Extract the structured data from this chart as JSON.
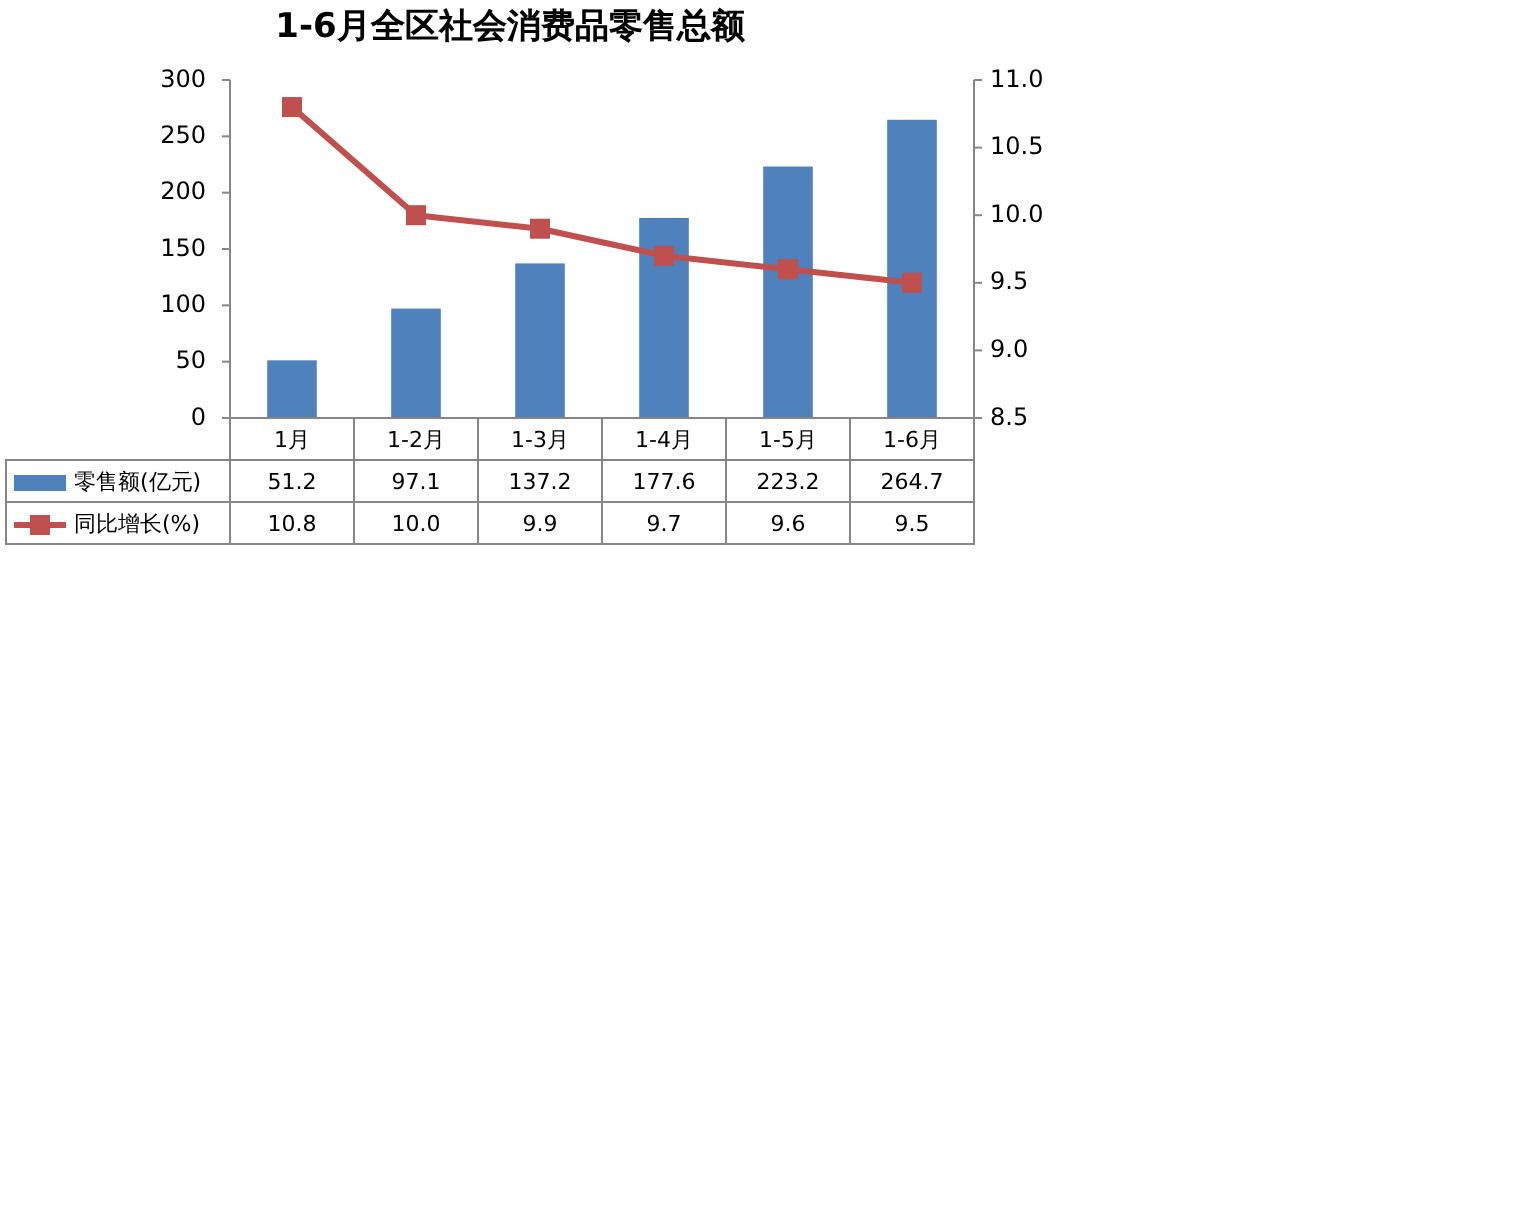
{
  "chart_data": {
    "type": "bar",
    "title": "1-6月全区社会消费品零售总额",
    "categories": [
      "1月",
      "1-2月",
      "1-3月",
      "1-4月",
      "1-5月",
      "1-6月"
    ],
    "series": [
      {
        "name": "零售额(亿元)",
        "color": "#4f81bd",
        "values": [
          51.2,
          97.1,
          137.2,
          177.6,
          223.2,
          264.7
        ],
        "value_labels": [
          "51.2",
          "97.1",
          "137.2",
          "177.6",
          "223.2",
          "264.7"
        ]
      },
      {
        "name": "同比增长(%)",
        "type": "line",
        "axis": "y2",
        "color": "#c0504d",
        "values": [
          10.8,
          10.0,
          9.9,
          9.7,
          9.6,
          9.5
        ],
        "value_labels": [
          "10.8",
          "10.0",
          "9.9",
          "9.7",
          "9.6",
          "9.5"
        ]
      }
    ],
    "ylim": [
      0,
      300
    ],
    "yticks": [
      0,
      50,
      100,
      150,
      200,
      250,
      300
    ],
    "y2lim": [
      8.5,
      11.0
    ],
    "y2ticks": [
      {
        "value": 8.5,
        "label": "8.5"
      },
      {
        "value": 9,
        "label": "9.0"
      },
      {
        "value": 9.5,
        "label": "9.5"
      },
      {
        "value": 10,
        "label": "10.0"
      },
      {
        "value": 10.5,
        "label": "10.5"
      },
      {
        "value": 11,
        "label": "11.0"
      }
    ],
    "legend": "bottom left",
    "marker": "square",
    "line_style": "solid"
  }
}
